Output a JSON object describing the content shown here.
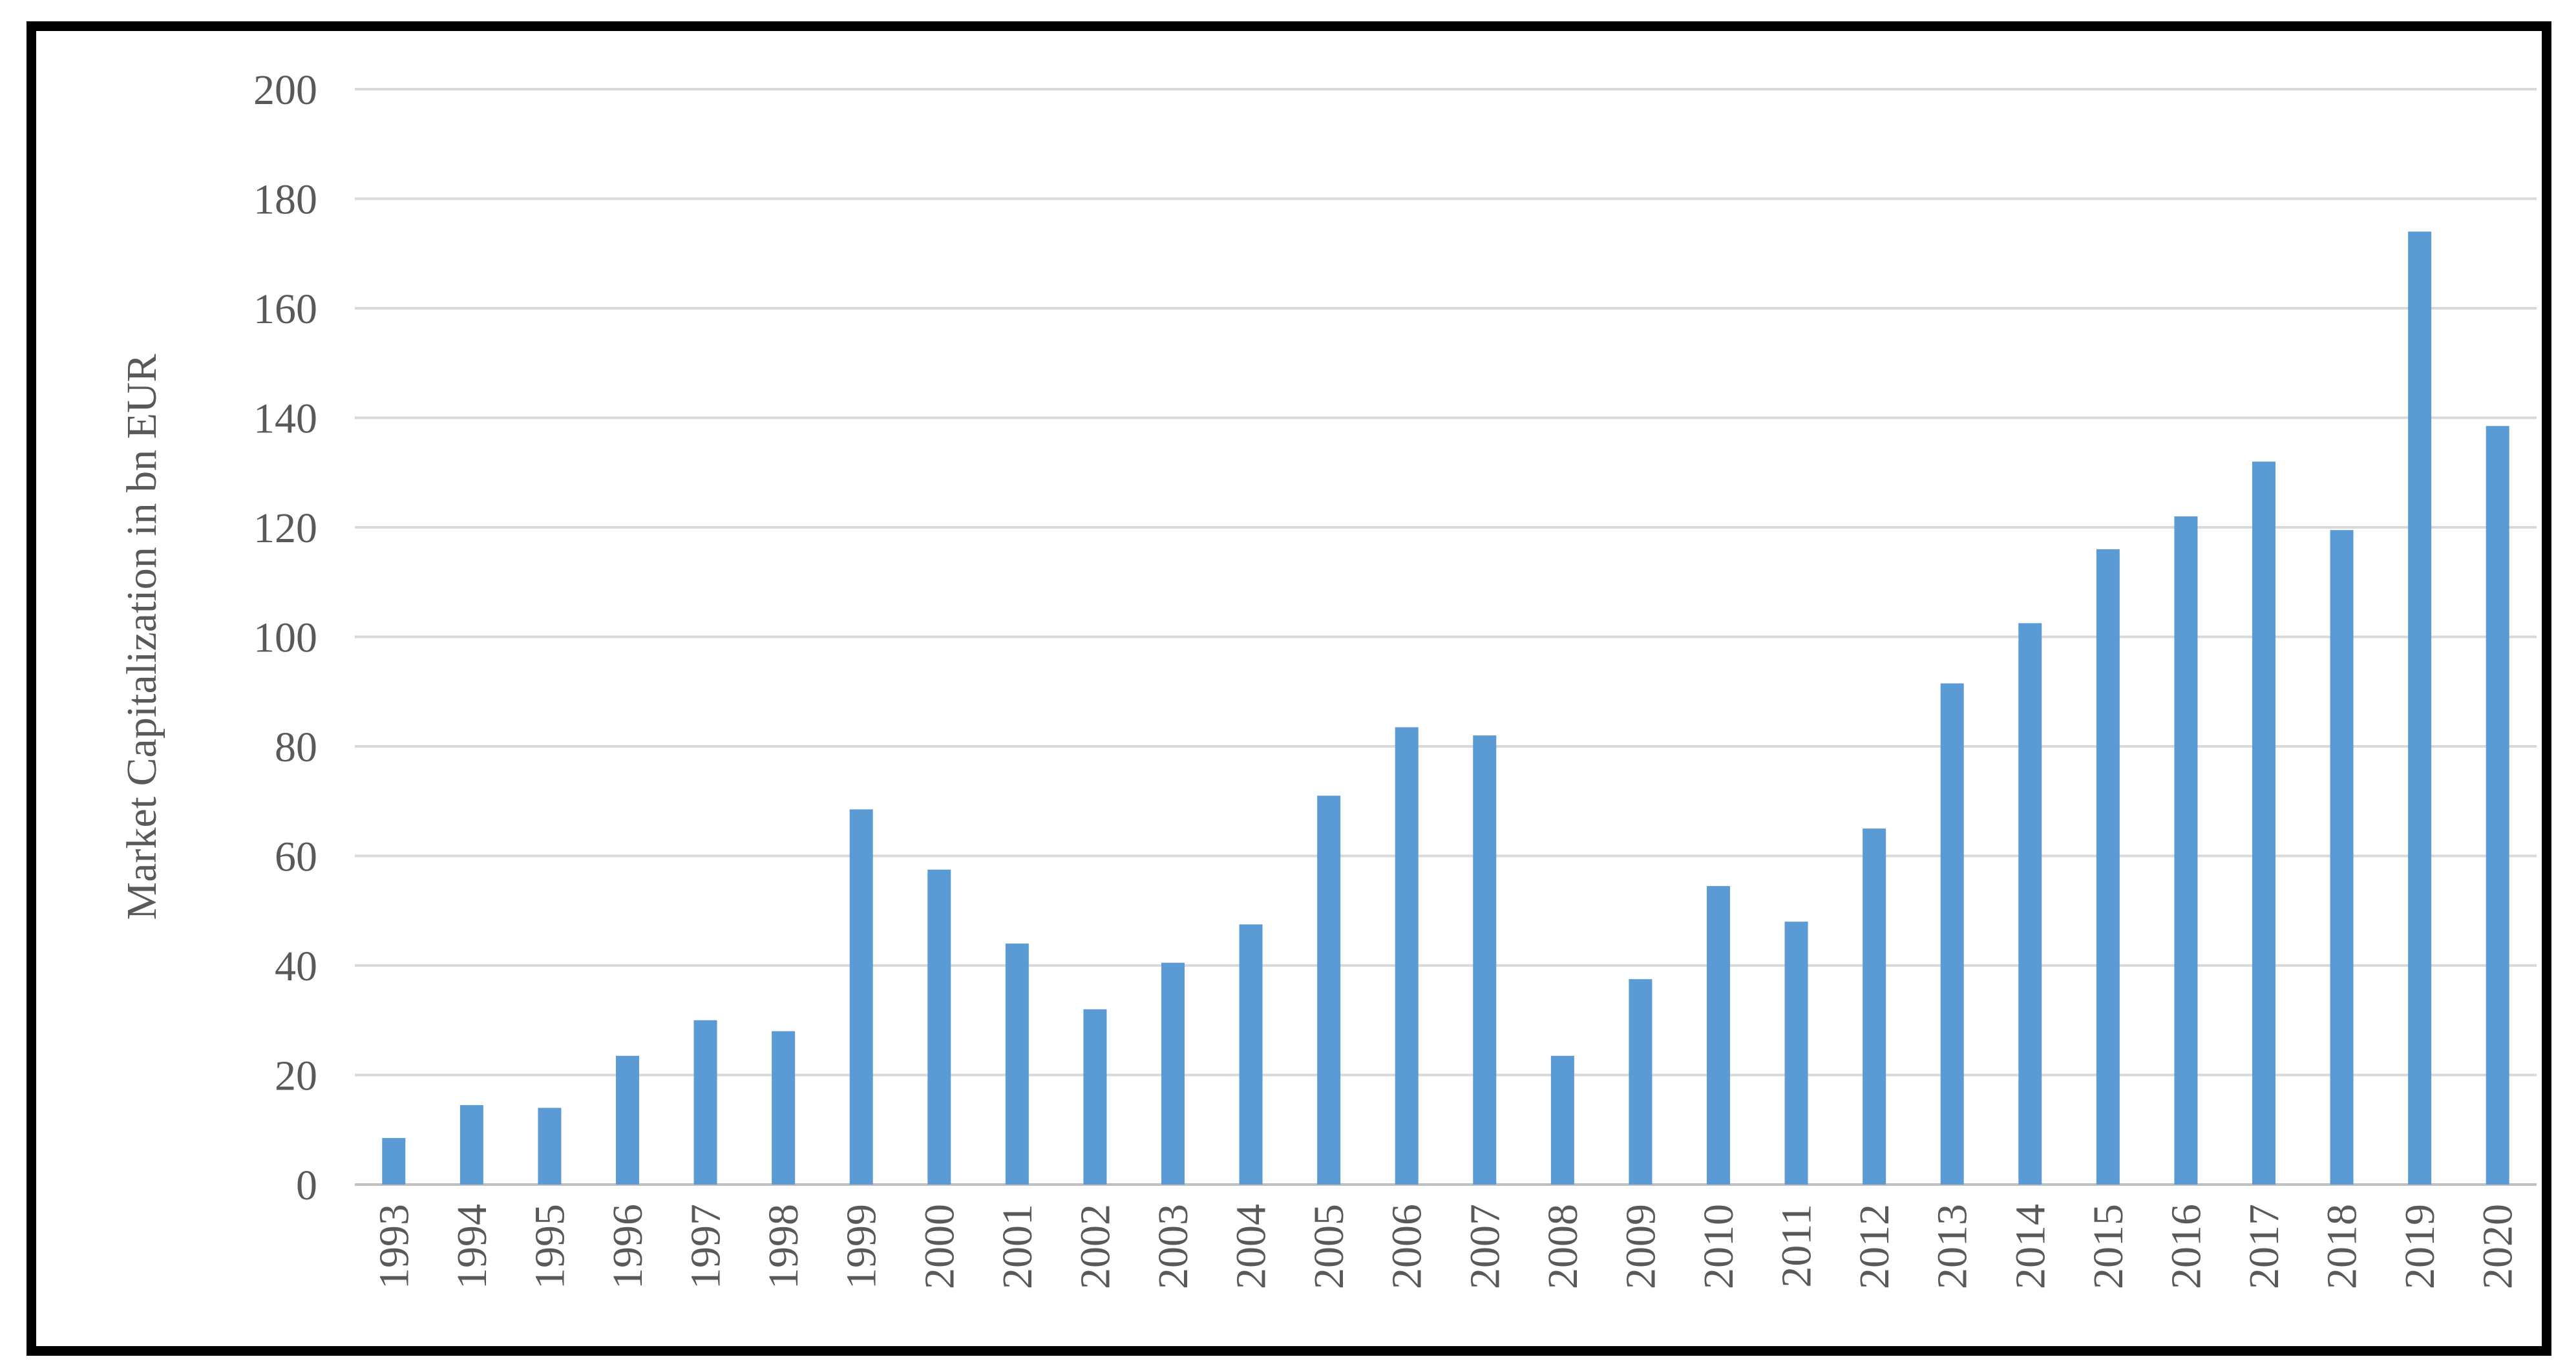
{
  "chart_data": {
    "type": "bar",
    "title": "",
    "xlabel": "",
    "ylabel": "Market Capitalization in bn EUR",
    "ylim": [
      0,
      200
    ],
    "yticks": [
      0,
      20,
      40,
      60,
      80,
      100,
      120,
      140,
      160,
      180,
      200
    ],
    "grid": true,
    "legend": "none",
    "bar_color": "#5B9BD5",
    "grid_color": "#d9d9d9",
    "categories": [
      "1993",
      "1994",
      "1995",
      "1996",
      "1997",
      "1998",
      "1999",
      "2000",
      "2001",
      "2002",
      "2003",
      "2004",
      "2005",
      "2006",
      "2007",
      "2008",
      "2009",
      "2010",
      "2011",
      "2012",
      "2013",
      "2014",
      "2015",
      "2016",
      "2017",
      "2018",
      "2019",
      "2020"
    ],
    "values": [
      8.5,
      14.5,
      14,
      23.5,
      30,
      28,
      68.5,
      57.5,
      44,
      32,
      40.5,
      47.5,
      71,
      83.5,
      82,
      23.5,
      37.5,
      54.5,
      48,
      65,
      91.5,
      102.5,
      116,
      122,
      132,
      119.5,
      174,
      138.5
    ]
  }
}
